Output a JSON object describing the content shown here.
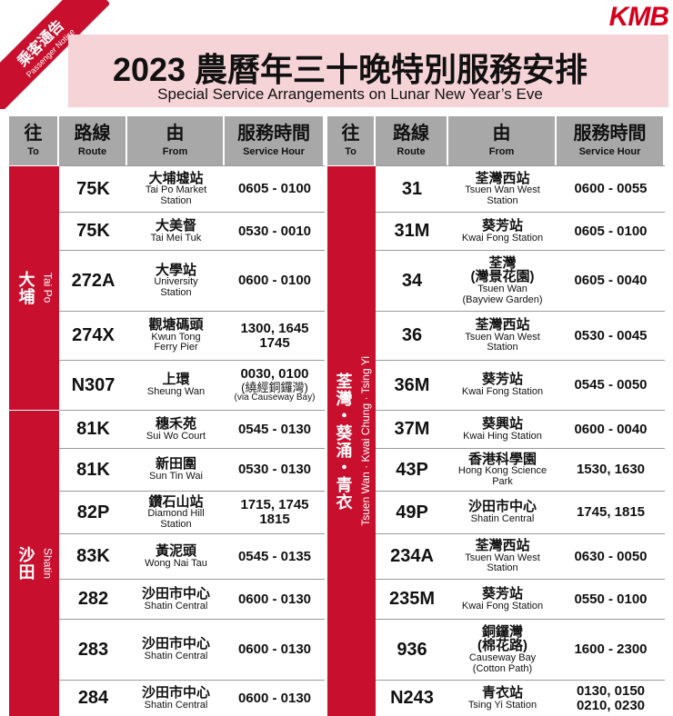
{
  "notice": {
    "zh": "乘客通告",
    "en": "Passenger Notice"
  },
  "logo": "KMB",
  "header": {
    "title": "2023 農曆年三十晚特別服務安排",
    "subtitle": "Special Service Arrangements on Lunar New Year’s Eve"
  },
  "table": {
    "columns": [
      {
        "zh": "往",
        "en": "To"
      },
      {
        "zh": "路線",
        "en": "Route"
      },
      {
        "zh": "由",
        "en": "From"
      },
      {
        "zh": "服務時間",
        "en": "Service Hour"
      }
    ],
    "left": [
      {
        "to_zh": "大埔",
        "to_en": "Tai Po",
        "rows": [
          {
            "route": "75K",
            "from_zh": [
              "大埔墟站"
            ],
            "from_en": [
              "Tai Po Market",
              "Station"
            ],
            "hours": [
              "0605 - 0100"
            ]
          },
          {
            "route": "75K",
            "from_zh": [
              "大美督"
            ],
            "from_en": [
              "Tai Mei Tuk"
            ],
            "hours": [
              "0530 - 0010"
            ]
          },
          {
            "route": "272A",
            "from_zh": [
              "大學站"
            ],
            "from_en": [
              "University",
              "Station"
            ],
            "hours": [
              "0600 - 0100"
            ]
          },
          {
            "route": "274X",
            "from_zh": [
              "觀塘碼頭"
            ],
            "from_en": [
              "Kwun Tong",
              "Ferry Pier"
            ],
            "hours": [
              "1300, 1645",
              "1745"
            ]
          },
          {
            "route": "N307",
            "from_zh": [
              "上環"
            ],
            "from_en": [
              "Sheung Wan"
            ],
            "hours": [
              "0030, 0100",
              "(繞經銅鑼灣)",
              "(via Causeway Bay)"
            ]
          }
        ]
      },
      {
        "to_zh": "沙田",
        "to_en": "Shatin",
        "rows": [
          {
            "route": "81K",
            "from_zh": [
              "穗禾苑"
            ],
            "from_en": [
              "Sui Wo Court"
            ],
            "hours": [
              "0545 - 0130"
            ]
          },
          {
            "route": "81K",
            "from_zh": [
              "新田圍"
            ],
            "from_en": [
              "Sun Tin Wai"
            ],
            "hours": [
              "0530 - 0130"
            ]
          },
          {
            "route": "82P",
            "from_zh": [
              "鑽石山站"
            ],
            "from_en": [
              "Diamond Hill",
              "Station"
            ],
            "hours": [
              "1715, 1745",
              "1815"
            ]
          },
          {
            "route": "83K",
            "from_zh": [
              "黃泥頭"
            ],
            "from_en": [
              "Wong Nai Tau"
            ],
            "hours": [
              "0545 - 0135"
            ]
          },
          {
            "route": "282",
            "from_zh": [
              "沙田市中心"
            ],
            "from_en": [
              "Shatin Central"
            ],
            "hours": [
              "0600 - 0130"
            ]
          },
          {
            "route": "283",
            "from_zh": [
              "沙田市中心"
            ],
            "from_en": [
              "Shatin Central"
            ],
            "hours": [
              "0600 - 0130"
            ]
          },
          {
            "route": "284",
            "from_zh": [
              "沙田市中心"
            ],
            "from_en": [
              "Shatin Central"
            ],
            "hours": [
              "0600 - 0130"
            ]
          }
        ]
      }
    ],
    "right": [
      {
        "to_zh": "荃灣・葵涌・青衣",
        "to_en": "Tsuen Wan · Kwai Chung · Tsing Yi",
        "rows": [
          {
            "route": "31",
            "from_zh": [
              "荃灣西站"
            ],
            "from_en": [
              "Tsuen Wan West",
              "Station"
            ],
            "hours": [
              "0600 - 0055"
            ]
          },
          {
            "route": "31M",
            "from_zh": [
              "葵芳站"
            ],
            "from_en": [
              "Kwai Fong Station"
            ],
            "hours": [
              "0605 - 0100"
            ]
          },
          {
            "route": "34",
            "from_zh": [
              "荃灣",
              "(灣景花園)"
            ],
            "from_en": [
              "Tsuen Wan",
              "(Bayview Garden)"
            ],
            "hours": [
              "0605 - 0040"
            ]
          },
          {
            "route": "36",
            "from_zh": [
              "荃灣西站"
            ],
            "from_en": [
              "Tsuen Wan West",
              "Station"
            ],
            "hours": [
              "0530 - 0045"
            ]
          },
          {
            "route": "36M",
            "from_zh": [
              "葵芳站"
            ],
            "from_en": [
              "Kwai Fong Station"
            ],
            "hours": [
              "0545 - 0050"
            ]
          },
          {
            "route": "37M",
            "from_zh": [
              "葵興站"
            ],
            "from_en": [
              "Kwai Hing Station"
            ],
            "hours": [
              "0600 - 0040"
            ]
          },
          {
            "route": "43P",
            "from_zh": [
              "香港科學園"
            ],
            "from_en": [
              "Hong Kong Science",
              "Park"
            ],
            "hours": [
              "1530, 1630"
            ]
          },
          {
            "route": "49P",
            "from_zh": [
              "沙田市中心"
            ],
            "from_en": [
              "Shatin Central"
            ],
            "hours": [
              "1745, 1815"
            ]
          },
          {
            "route": "234A",
            "from_zh": [
              "荃灣西站"
            ],
            "from_en": [
              "Tsuen Wan West",
              "Station"
            ],
            "hours": [
              "0630 - 0050"
            ]
          },
          {
            "route": "235M",
            "from_zh": [
              "葵芳站"
            ],
            "from_en": [
              "Kwai Fong Station"
            ],
            "hours": [
              "0550 - 0100"
            ]
          },
          {
            "route": "936",
            "from_zh": [
              "銅鑼灣",
              "(棉花路)"
            ],
            "from_en": [
              "Causeway Bay",
              "(Cotton Path)"
            ],
            "hours": [
              "1600 - 2300"
            ]
          },
          {
            "route": "N243",
            "from_zh": [
              "青衣站"
            ],
            "from_en": [
              "Tsing Yi Station"
            ],
            "hours": [
              "0130, 0150",
              "0210, 0230"
            ]
          }
        ]
      }
    ]
  }
}
